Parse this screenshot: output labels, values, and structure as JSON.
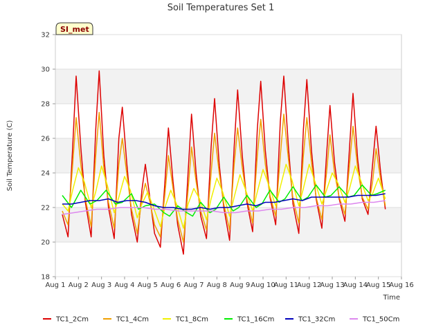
{
  "chart_data": {
    "type": "line",
    "title": "Soil Temperatures Set 1",
    "xlabel": "Time",
    "ylabel": "Soil Temperature (C)",
    "badge": "SI_met",
    "ylim": [
      18,
      32
    ],
    "xlim": [
      1,
      16
    ],
    "yticks": [
      18,
      20,
      22,
      24,
      26,
      28,
      30,
      32
    ],
    "xticks": [
      1,
      2,
      3,
      4,
      5,
      6,
      7,
      8,
      9,
      10,
      11,
      12,
      13,
      14,
      15,
      16
    ],
    "xtick_labels": [
      "Aug 1",
      "Aug 2",
      "Aug 3",
      "Aug 4",
      "Aug 5",
      "Aug 6",
      "Aug 7",
      "Aug 8",
      "Aug 9",
      "Aug 10",
      "Aug 11",
      "Aug 12",
      "Aug 13",
      "Aug 14",
      "Aug 15",
      "Aug 16"
    ],
    "grid": true,
    "legend_position": "bottom",
    "series": [
      {
        "name": "TC1_2Cm",
        "color": "#dd0000",
        "x": [
          1.3,
          1.55,
          1.75,
          1.9,
          2.1,
          2.3,
          2.55,
          2.75,
          2.9,
          3.1,
          3.3,
          3.55,
          3.75,
          3.9,
          4.1,
          4.3,
          4.55,
          4.75,
          4.9,
          5.1,
          5.3,
          5.55,
          5.75,
          5.9,
          6.1,
          6.3,
          6.55,
          6.75,
          6.9,
          7.1,
          7.3,
          7.55,
          7.75,
          7.9,
          8.1,
          8.3,
          8.55,
          8.75,
          8.9,
          9.1,
          9.3,
          9.55,
          9.75,
          9.9,
          10.1,
          10.3,
          10.55,
          10.75,
          10.9,
          11.1,
          11.3,
          11.55,
          11.75,
          11.9,
          12.1,
          12.3,
          12.55,
          12.75,
          12.9,
          13.1,
          13.3,
          13.55,
          13.75,
          13.9,
          14.1,
          14.3,
          14.55,
          14.75,
          14.9,
          15.1,
          15.3
        ],
        "y": [
          21.6,
          20.3,
          25.5,
          29.6,
          25.5,
          22.3,
          20.3,
          26.5,
          29.9,
          25.0,
          22.0,
          20.2,
          26.0,
          27.8,
          24.5,
          21.6,
          20.0,
          23.0,
          24.5,
          22.5,
          20.5,
          19.7,
          23.5,
          26.6,
          23.5,
          21.0,
          19.3,
          24.0,
          27.4,
          24.0,
          21.5,
          20.2,
          25.5,
          28.3,
          24.5,
          22.0,
          20.1,
          25.5,
          28.8,
          25.0,
          22.3,
          20.6,
          26.5,
          29.3,
          25.3,
          22.6,
          21.0,
          27.0,
          29.6,
          25.5,
          22.2,
          20.5,
          26.5,
          29.4,
          25.3,
          22.5,
          20.8,
          25.0,
          27.9,
          24.6,
          22.5,
          21.2,
          25.5,
          28.6,
          24.8,
          22.5,
          21.6,
          24.5,
          26.7,
          24.0,
          21.9
        ]
      },
      {
        "name": "TC1_4Cm",
        "color": "#f0a000",
        "x": [
          1.3,
          1.55,
          1.75,
          1.9,
          2.1,
          2.3,
          2.55,
          2.75,
          2.9,
          3.1,
          3.3,
          3.55,
          3.75,
          3.9,
          4.1,
          4.3,
          4.55,
          4.75,
          4.9,
          5.1,
          5.3,
          5.55,
          5.75,
          5.9,
          6.1,
          6.3,
          6.55,
          6.75,
          6.9,
          7.1,
          7.3,
          7.55,
          7.75,
          7.9,
          8.1,
          8.3,
          8.55,
          8.75,
          8.9,
          9.1,
          9.3,
          9.55,
          9.75,
          9.9,
          10.1,
          10.3,
          10.55,
          10.75,
          10.9,
          11.1,
          11.3,
          11.55,
          11.75,
          11.9,
          12.1,
          12.3,
          12.55,
          12.75,
          12.9,
          13.1,
          13.3,
          13.55,
          13.75,
          13.9,
          14.1,
          14.3,
          14.55,
          14.75,
          14.9,
          15.1,
          15.3
        ],
        "y": [
          21.8,
          21.0,
          24.5,
          27.2,
          24.5,
          22.5,
          20.9,
          25.0,
          27.5,
          24.3,
          22.3,
          20.8,
          24.5,
          26.0,
          23.9,
          21.9,
          20.5,
          22.5,
          23.4,
          22.3,
          21.0,
          20.3,
          22.8,
          25.0,
          23.1,
          21.3,
          20.0,
          23.0,
          25.5,
          23.5,
          21.8,
          20.7,
          24.0,
          26.3,
          24.0,
          22.2,
          20.7,
          24.5,
          26.6,
          24.3,
          22.5,
          21.1,
          25.0,
          27.1,
          24.5,
          22.7,
          21.5,
          25.0,
          27.4,
          24.8,
          22.5,
          21.1,
          25.0,
          27.2,
          24.6,
          22.6,
          21.3,
          24.0,
          26.2,
          24.0,
          22.6,
          21.6,
          24.5,
          26.7,
          24.3,
          22.6,
          21.9,
          23.5,
          25.4,
          23.6,
          22.1
        ]
      },
      {
        "name": "TC1_8Cm",
        "color": "#f0f000",
        "x": [
          1.3,
          1.55,
          1.75,
          2.0,
          2.25,
          2.55,
          2.75,
          3.0,
          3.25,
          3.55,
          3.75,
          4.0,
          4.25,
          4.55,
          4.75,
          5.0,
          5.25,
          5.55,
          5.75,
          6.0,
          6.25,
          6.55,
          6.75,
          7.0,
          7.25,
          7.55,
          7.75,
          8.0,
          8.25,
          8.55,
          8.75,
          9.0,
          9.25,
          9.55,
          9.75,
          10.0,
          10.25,
          10.55,
          10.75,
          11.0,
          11.25,
          11.55,
          11.75,
          12.0,
          12.25,
          12.55,
          12.75,
          13.0,
          13.25,
          13.55,
          13.75,
          14.0,
          14.25,
          14.55,
          14.75,
          15.0,
          15.3
        ],
        "y": [
          22.2,
          21.8,
          23.0,
          24.3,
          23.5,
          22.0,
          22.9,
          24.4,
          23.3,
          21.7,
          22.6,
          23.8,
          23.0,
          21.4,
          22.2,
          22.9,
          22.0,
          20.9,
          22.0,
          23.0,
          22.2,
          20.8,
          22.2,
          23.1,
          22.5,
          21.3,
          22.5,
          23.7,
          22.9,
          21.5,
          22.6,
          23.9,
          23.0,
          21.8,
          22.9,
          24.2,
          23.3,
          22.1,
          23.2,
          24.5,
          23.6,
          22.1,
          23.1,
          24.5,
          23.5,
          22.2,
          23.0,
          24.0,
          23.4,
          22.3,
          23.1,
          24.4,
          23.5,
          22.4,
          22.8,
          23.7,
          22.5
        ]
      },
      {
        "name": "TC1_16Cm",
        "color": "#00ee00",
        "x": [
          1.3,
          1.7,
          2.1,
          2.5,
          2.8,
          3.2,
          3.6,
          3.9,
          4.3,
          4.6,
          4.9,
          5.3,
          5.7,
          5.95,
          6.3,
          6.7,
          6.95,
          7.3,
          7.7,
          7.95,
          8.3,
          8.7,
          8.95,
          9.3,
          9.7,
          9.95,
          10.3,
          10.7,
          10.95,
          11.3,
          11.7,
          11.95,
          12.3,
          12.7,
          12.95,
          13.3,
          13.7,
          13.95,
          14.3,
          14.7,
          14.95,
          15.3
        ],
        "y": [
          22.7,
          22.0,
          23.0,
          22.2,
          22.4,
          23.0,
          22.2,
          22.3,
          22.8,
          21.9,
          22.1,
          22.2,
          21.7,
          21.5,
          22.1,
          21.7,
          21.5,
          22.3,
          21.7,
          21.9,
          22.6,
          21.8,
          22.0,
          22.7,
          22.0,
          22.2,
          23.0,
          22.3,
          22.5,
          23.2,
          22.4,
          22.6,
          23.3,
          22.6,
          22.7,
          23.2,
          22.6,
          22.7,
          23.3,
          22.7,
          22.8,
          23.0
        ]
      },
      {
        "name": "TC1_32Cm",
        "color": "#0000bb",
        "x": [
          1.3,
          1.7,
          2.1,
          2.5,
          2.9,
          3.3,
          3.7,
          4.1,
          4.5,
          4.9,
          5.3,
          5.7,
          6.1,
          6.5,
          6.9,
          7.3,
          7.7,
          8.1,
          8.5,
          8.9,
          9.3,
          9.7,
          10.1,
          10.5,
          10.9,
          11.3,
          11.7,
          12.1,
          12.5,
          12.9,
          13.3,
          13.7,
          14.1,
          14.5,
          14.9,
          15.3
        ],
        "y": [
          22.2,
          22.2,
          22.3,
          22.4,
          22.4,
          22.5,
          22.3,
          22.4,
          22.4,
          22.3,
          22.1,
          22.0,
          22.0,
          21.9,
          21.9,
          22.0,
          21.9,
          22.0,
          22.0,
          22.1,
          22.2,
          22.1,
          22.3,
          22.3,
          22.4,
          22.5,
          22.4,
          22.6,
          22.6,
          22.6,
          22.6,
          22.6,
          22.7,
          22.7,
          22.7,
          22.8
        ]
      },
      {
        "name": "TC1_50Cm",
        "color": "#dd88ee",
        "x": [
          1.3,
          1.8,
          2.3,
          2.8,
          3.3,
          3.8,
          4.3,
          4.8,
          5.3,
          5.8,
          6.3,
          6.8,
          7.3,
          7.8,
          8.3,
          8.8,
          9.3,
          9.8,
          10.3,
          10.8,
          11.3,
          11.8,
          12.3,
          12.8,
          13.3,
          13.8,
          14.3,
          14.8,
          15.3
        ],
        "y": [
          21.6,
          21.7,
          21.8,
          21.9,
          21.9,
          22.0,
          22.0,
          22.0,
          21.9,
          21.9,
          21.8,
          21.8,
          21.8,
          21.8,
          21.7,
          21.7,
          21.8,
          21.8,
          21.9,
          21.9,
          22.0,
          22.0,
          22.1,
          22.1,
          22.2,
          22.2,
          22.3,
          22.3,
          22.4
        ]
      }
    ]
  }
}
